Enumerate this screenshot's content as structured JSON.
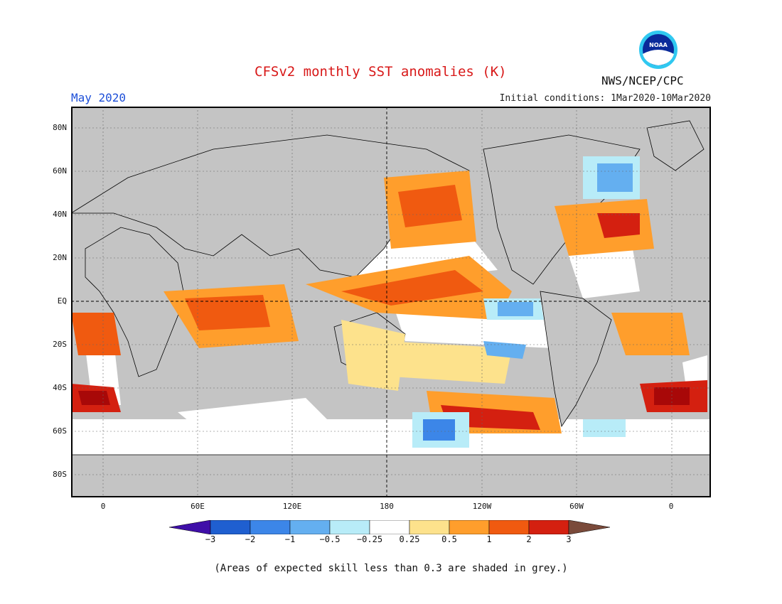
{
  "header": {
    "title": "CFSv2 monthly SST anomalies (K)",
    "month": "May 2020",
    "initial_conditions": "Initial conditions: 1Mar2020-10Mar2020",
    "agency": "NWS/NCEP/CPC",
    "logo_text": "NOAA"
  },
  "axes": {
    "lat_labels": [
      "80N",
      "60N",
      "40N",
      "20N",
      "EQ",
      "20S",
      "40S",
      "60S",
      "80S"
    ],
    "lon_labels": [
      "0",
      "60E",
      "120E",
      "180",
      "120W",
      "60W",
      "0"
    ]
  },
  "colorbar": {
    "labels": [
      "−3",
      "−2",
      "−1",
      "−0.5",
      "−0.25",
      "0.25",
      "0.5",
      "1",
      "2",
      "3"
    ],
    "colors": [
      "#3f0fa8",
      "#1f5fd0",
      "#3c86e8",
      "#64aff0",
      "#b8ecf8",
      "#ffffff",
      "#fde28c",
      "#ff9e2c",
      "#f05a10",
      "#d42010",
      "#a80808",
      "#7a4a3a"
    ]
  },
  "colors": {
    "land": "#c4c4c4",
    "grey_skill": "#c4c4c4",
    "coast": "#000000"
  },
  "footnote": "(Areas of expected skill less than 0.3 are shaded in grey.)"
}
